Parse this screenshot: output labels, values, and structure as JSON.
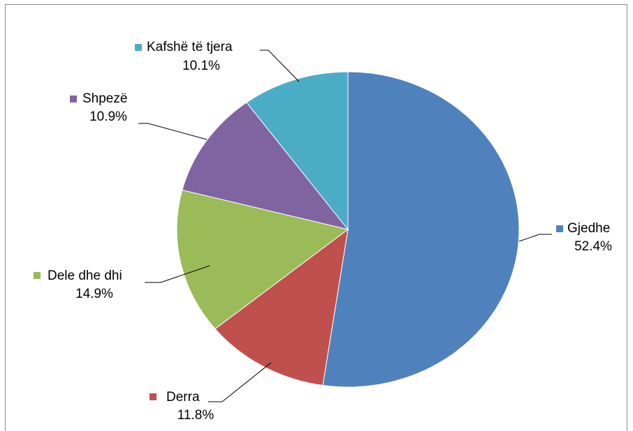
{
  "chart_data": {
    "type": "pie",
    "categories": [
      "Gjedhe",
      "Derra",
      "Dele dhe dhi",
      "Shpezë",
      "Kafshë të tjera"
    ],
    "values": [
      52.4,
      11.8,
      14.9,
      10.9,
      10.1
    ],
    "value_labels": [
      "52.4%",
      "11.8%",
      "14.9%",
      "10.9%",
      "10.1%"
    ],
    "colors": [
      "#4f81bd",
      "#c0504d",
      "#9bbb59",
      "#8064a2",
      "#4bacc6"
    ]
  }
}
